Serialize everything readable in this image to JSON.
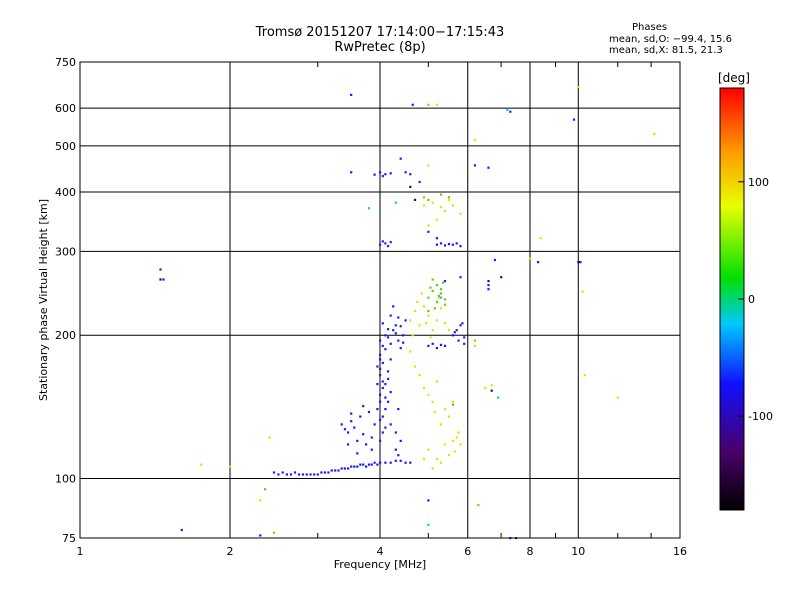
{
  "header": {
    "title": "Tromsø 20151207 17:14:00−17:15:43",
    "subtitle": "RwPretec (8p)",
    "phases_label": "Phases",
    "phase_o": "mean, sd,O: −99.4, 15.6",
    "phase_x": "mean, sd,X:  81.5, 21.3"
  },
  "colors": {
    "blue": "#1a1aff",
    "navy": "#1010a0",
    "purple": "#300070",
    "yellow": "#e8e000",
    "green": "#66cc00",
    "orange": "#ff9a00",
    "red": "#ff2000",
    "cyan": "#00c8ff"
  },
  "chart_data": {
    "type": "scatter",
    "xlabel": "Frequency [MHz]",
    "ylabel": "Stationary phase Virtual Height [km]",
    "x_scale": "log",
    "y_scale": "log",
    "xlim": [
      1,
      16
    ],
    "ylim": [
      75,
      750
    ],
    "x_ticks": [
      1,
      2,
      4,
      6,
      8,
      10,
      16
    ],
    "y_ticks": [
      75,
      100,
      200,
      300,
      400,
      500,
      600,
      750
    ],
    "grid": true,
    "colorbar": {
      "label": "[deg]",
      "range": [
        -180,
        180
      ],
      "ticks": [
        100,
        0,
        -100
      ]
    },
    "series": [
      {
        "color": "blue",
        "points": [
          [
            2.45,
            103
          ],
          [
            2.5,
            102
          ],
          [
            2.55,
            103
          ],
          [
            2.6,
            102
          ],
          [
            2.65,
            102
          ],
          [
            2.7,
            103
          ],
          [
            2.75,
            102
          ],
          [
            2.8,
            102
          ],
          [
            2.85,
            102
          ],
          [
            2.9,
            102
          ],
          [
            2.95,
            102
          ],
          [
            3.0,
            102
          ],
          [
            3.05,
            103
          ],
          [
            3.1,
            103
          ],
          [
            3.15,
            103
          ],
          [
            3.2,
            104
          ],
          [
            3.25,
            104
          ],
          [
            3.3,
            104
          ],
          [
            3.35,
            105
          ],
          [
            3.4,
            105
          ],
          [
            3.45,
            105
          ],
          [
            3.5,
            106
          ],
          [
            3.55,
            106
          ],
          [
            3.6,
            106
          ],
          [
            3.65,
            107
          ],
          [
            3.7,
            107
          ],
          [
            3.75,
            106
          ],
          [
            3.8,
            107
          ],
          [
            3.85,
            107
          ],
          [
            3.9,
            108
          ],
          [
            3.95,
            107
          ],
          [
            4.0,
            108
          ],
          [
            4.1,
            108
          ],
          [
            4.2,
            108
          ],
          [
            4.3,
            109
          ],
          [
            4.4,
            109
          ],
          [
            4.5,
            108
          ],
          [
            3.35,
            130
          ],
          [
            3.4,
            127
          ],
          [
            3.45,
            125
          ],
          [
            3.5,
            132
          ],
          [
            3.55,
            128
          ],
          [
            3.6,
            120
          ],
          [
            3.65,
            135
          ],
          [
            3.7,
            124
          ],
          [
            3.75,
            118
          ],
          [
            3.8,
            138
          ],
          [
            3.85,
            115
          ],
          [
            3.9,
            130
          ],
          [
            3.95,
            140
          ],
          [
            4.0,
            133
          ],
          [
            4.05,
            125
          ],
          [
            3.45,
            118
          ],
          [
            3.6,
            113
          ],
          [
            3.7,
            142
          ],
          [
            3.5,
            137
          ],
          [
            3.85,
            122
          ],
          [
            4.0,
            145
          ],
          [
            4.0,
            150
          ],
          [
            4.05,
            155
          ],
          [
            4.05,
            160
          ],
          [
            4.0,
            165
          ],
          [
            4.0,
            170
          ],
          [
            4.05,
            175
          ],
          [
            4.1,
            148
          ],
          [
            4.1,
            158
          ],
          [
            4.15,
            168
          ],
          [
            4.2,
            152
          ],
          [
            4.15,
            162
          ],
          [
            4.0,
            178
          ],
          [
            3.95,
            158
          ],
          [
            4.1,
            140
          ],
          [
            4.0,
            120
          ],
          [
            4.2,
            130
          ],
          [
            4.3,
            125
          ],
          [
            4.35,
            140
          ],
          [
            4.05,
            135
          ],
          [
            4.1,
            128
          ],
          [
            4.15,
            145
          ],
          [
            3.95,
            172
          ],
          [
            4.0,
            182
          ],
          [
            4.3,
            115
          ],
          [
            4.4,
            120
          ],
          [
            4.35,
            112
          ],
          [
            4.0,
            195
          ],
          [
            4.05,
            190
          ],
          [
            4.1,
            200
          ],
          [
            4.15,
            198
          ],
          [
            4.2,
            192
          ],
          [
            4.25,
            205
          ],
          [
            4.3,
            210
          ],
          [
            4.35,
            195
          ],
          [
            4.4,
            188
          ],
          [
            4.45,
            200
          ],
          [
            4.5,
            215
          ],
          [
            4.2,
            220
          ],
          [
            4.25,
            230
          ],
          [
            4.1,
            187
          ],
          [
            4.3,
            202
          ],
          [
            4.35,
            218
          ],
          [
            4.4,
            209
          ],
          [
            4.15,
            206
          ],
          [
            4.45,
            193
          ],
          [
            4.05,
            212
          ],
          [
            5.0,
            190
          ],
          [
            5.1,
            192
          ],
          [
            5.2,
            188
          ],
          [
            5.3,
            191
          ],
          [
            5.4,
            190
          ],
          [
            5.6,
            200
          ],
          [
            5.7,
            205
          ],
          [
            5.8,
            210
          ],
          [
            5.9,
            198
          ],
          [
            5.75,
            195
          ],
          [
            5.65,
            203
          ],
          [
            5.85,
            212
          ],
          [
            5.9,
            192
          ],
          [
            4.0,
            310
          ],
          [
            4.05,
            315
          ],
          [
            4.1,
            312
          ],
          [
            4.15,
            308
          ],
          [
            4.2,
            314
          ],
          [
            5.2,
            310
          ],
          [
            5.3,
            312
          ],
          [
            5.4,
            309
          ],
          [
            5.5,
            311
          ],
          [
            5.6,
            310
          ],
          [
            5.7,
            312
          ],
          [
            5.8,
            308
          ],
          [
            3.9,
            435
          ],
          [
            4.0,
            440
          ],
          [
            4.05,
            432
          ],
          [
            4.1,
            436
          ],
          [
            4.2,
            438
          ],
          [
            4.5,
            440
          ],
          [
            4.6,
            436
          ],
          [
            3.5,
            440
          ],
          [
            4.4,
            470
          ],
          [
            4.8,
            420
          ],
          [
            5.0,
            330
          ],
          [
            5.2,
            320
          ],
          [
            1.45,
            275
          ],
          [
            1.47,
            262
          ],
          [
            1.6,
            78
          ],
          [
            2.3,
            76
          ],
          [
            3.5,
            640
          ],
          [
            4.65,
            610
          ],
          [
            7.3,
            590
          ],
          [
            9.8,
            568
          ],
          [
            6.2,
            455
          ],
          [
            6.6,
            450
          ],
          [
            6.8,
            288
          ],
          [
            8.3,
            285
          ],
          [
            10.1,
            285
          ],
          [
            5.4,
            260
          ],
          [
            5.8,
            265
          ],
          [
            6.6,
            255
          ],
          [
            6.6,
            250
          ],
          [
            7.3,
            75
          ],
          [
            7.5,
            75
          ],
          [
            5.0,
            90
          ],
          [
            4.2,
            178
          ],
          [
            4.6,
            108
          ]
        ]
      },
      {
        "color": "yellow",
        "points": [
          [
            4.6,
            215
          ],
          [
            4.7,
            225
          ],
          [
            4.8,
            210
          ],
          [
            4.9,
            230
          ],
          [
            5.0,
            220
          ],
          [
            5.1,
            205
          ],
          [
            5.2,
            215
          ],
          [
            5.3,
            228
          ],
          [
            5.4,
            212
          ],
          [
            5.5,
            205
          ],
          [
            4.65,
            200
          ],
          [
            4.75,
            235
          ],
          [
            4.85,
            245
          ],
          [
            5.05,
            198
          ],
          [
            5.25,
            240
          ],
          [
            4.95,
            212
          ],
          [
            4.6,
            185
          ],
          [
            4.8,
            165
          ],
          [
            4.9,
            155
          ],
          [
            5.0,
            150
          ],
          [
            5.1,
            145
          ],
          [
            5.2,
            160
          ],
          [
            5.4,
            140
          ],
          [
            5.5,
            135
          ],
          [
            5.6,
            145
          ],
          [
            4.7,
            172
          ],
          [
            5.3,
            130
          ],
          [
            5.15,
            138
          ],
          [
            5.0,
            115
          ],
          [
            5.2,
            110
          ],
          [
            5.4,
            118
          ],
          [
            5.6,
            120
          ],
          [
            5.7,
            122
          ],
          [
            5.8,
            118
          ],
          [
            5.5,
            112
          ],
          [
            5.3,
            108
          ],
          [
            5.1,
            105
          ],
          [
            4.9,
            110
          ],
          [
            5.65,
            114
          ],
          [
            5.75,
            125
          ],
          [
            5.0,
            340
          ],
          [
            5.2,
            350
          ],
          [
            5.4,
            365
          ],
          [
            5.6,
            375
          ],
          [
            5.8,
            360
          ],
          [
            5.1,
            380
          ],
          [
            5.3,
            372
          ],
          [
            5.5,
            385
          ],
          [
            5.0,
            455
          ],
          [
            4.9,
            375
          ],
          [
            1.75,
            107
          ],
          [
            2.0,
            106
          ],
          [
            2.4,
            122
          ],
          [
            2.3,
            90
          ],
          [
            5.2,
            610
          ],
          [
            6.2,
            515
          ],
          [
            6.5,
            155
          ],
          [
            6.7,
            157
          ],
          [
            6.9,
            148
          ],
          [
            10.3,
            165
          ],
          [
            12.0,
            148
          ],
          [
            14.2,
            530
          ],
          [
            10.0,
            665
          ],
          [
            7.0,
            75
          ],
          [
            8.4,
            320
          ],
          [
            8.0,
            290
          ],
          [
            10.2,
            247
          ],
          [
            6.2,
            190
          ]
        ]
      },
      {
        "color": "green",
        "points": [
          [
            5.0,
            240
          ],
          [
            5.1,
            248
          ],
          [
            5.2,
            235
          ],
          [
            5.3,
            245
          ],
          [
            5.4,
            232
          ],
          [
            5.0,
            225
          ],
          [
            5.2,
            255
          ],
          [
            5.1,
            262
          ],
          [
            5.3,
            250
          ],
          [
            5.4,
            238
          ],
          [
            5.15,
            228
          ],
          [
            5.05,
            252
          ],
          [
            5.25,
            242
          ],
          [
            5.35,
            258
          ],
          [
            5.0,
            385
          ],
          [
            5.3,
            395
          ],
          [
            5.5,
            390
          ],
          [
            2.35,
            95
          ],
          [
            5.6,
            143
          ]
        ]
      },
      {
        "color": "cyan",
        "points": [
          [
            3.8,
            370
          ],
          [
            4.3,
            380
          ],
          [
            5.3,
            240
          ],
          [
            6.9,
            148
          ],
          [
            7.2,
            595
          ],
          [
            5.0,
            80
          ]
        ]
      },
      {
        "color": "orange",
        "points": [
          [
            4.9,
            390
          ],
          [
            5.0,
            610
          ],
          [
            2.45,
            77
          ],
          [
            6.3,
            88
          ],
          [
            6.2,
            195
          ]
        ]
      },
      {
        "color": "purple",
        "points": [
          [
            4.6,
            410
          ],
          [
            4.7,
            385
          ],
          [
            6.6,
            260
          ],
          [
            7.0,
            265
          ],
          [
            10.0,
            285
          ],
          [
            1.45,
            262
          ],
          [
            6.7,
            153
          ]
        ]
      }
    ]
  }
}
